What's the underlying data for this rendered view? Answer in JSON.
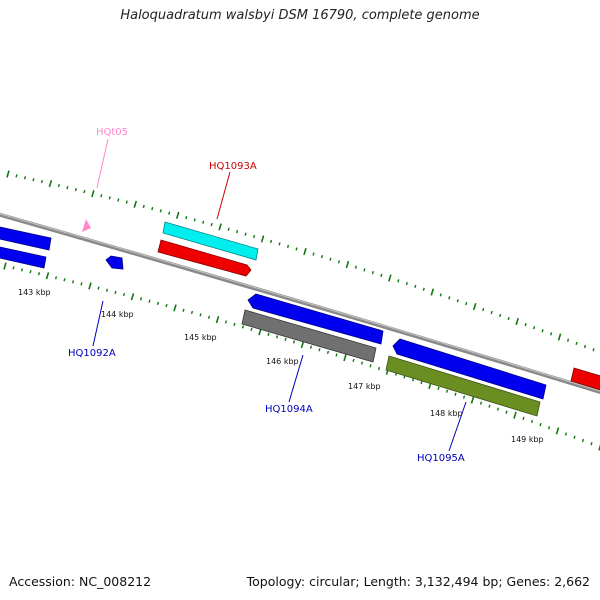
{
  "title": "Haloquadratum walsbyi DSM 16790, complete genome",
  "footer": {
    "accession": "Accession: NC_008212",
    "summary": "Topology: circular; Length: 3,132,494 bp; Genes: 2,662"
  },
  "tick_labels": [
    "143 kbp",
    "144 kbp",
    "145 kbp",
    "146 kbp",
    "147 kbp",
    "148 kbp",
    "149 kbp"
  ],
  "gene_labels": [
    {
      "id": "hqt05",
      "text": "HQt05",
      "color": "#ff88cc"
    },
    {
      "id": "hq1093a",
      "text": "HQ1093A",
      "color": "#cc0000"
    },
    {
      "id": "hq1092a",
      "text": "HQ1092A",
      "color": "#0000bb"
    },
    {
      "id": "hq1094a",
      "text": "HQ1094A",
      "color": "#0000bb"
    },
    {
      "id": "hq1095a",
      "text": "HQ1095A",
      "color": "#0000bb"
    }
  ],
  "colors": {
    "backbone": "#888888",
    "tick_marks": "#117711",
    "cds": "#0000ee",
    "trna": "#ff88cc",
    "cog_cyan": "#00eeee",
    "cog_red": "#ee0000",
    "cog_gray": "#707070",
    "cog_olive": "#6b8e23"
  }
}
